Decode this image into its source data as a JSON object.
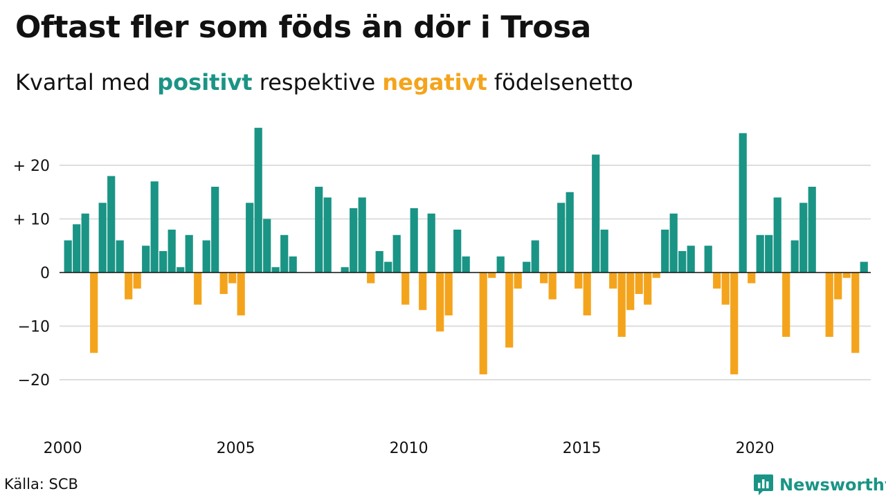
{
  "header": {
    "title": "Oftast fler som föds än dör i Trosa",
    "subtitle_pre": "Kvartal med ",
    "subtitle_pos": "positivt",
    "subtitle_mid": " respektive ",
    "subtitle_neg": "negativt",
    "subtitle_post": " födelsenetto"
  },
  "footer": {
    "source": "Källa: SCB",
    "brand": "Newsworthy"
  },
  "colors": {
    "positive": "#1a9485",
    "negative": "#f4a41c",
    "grid": "#dddddd",
    "text": "#111111"
  },
  "chart_data": {
    "type": "bar",
    "title": "Oftast fler som föds än dör i Trosa",
    "subtitle": "Kvartal med positivt respektive negativt födelsenetto",
    "start_year": 2000,
    "start_quarter": 1,
    "xlabel": "",
    "ylabel": "",
    "ylim": [
      -29,
      29
    ],
    "y_ticks": [
      20,
      10,
      0,
      -10,
      -20
    ],
    "y_tick_labels": [
      "+ 20",
      "+ 10",
      "0",
      "−10",
      "−20"
    ],
    "x_tick_labels": [
      "2000",
      "2005",
      "2010",
      "2015",
      "2020"
    ],
    "grid": true,
    "values": [
      6,
      9,
      11,
      -15,
      13,
      18,
      6,
      -5,
      -3,
      5,
      17,
      4,
      8,
      1,
      7,
      -6,
      6,
      16,
      -4,
      -2,
      -8,
      13,
      27,
      10,
      1,
      7,
      3,
      0,
      0,
      16,
      14,
      0,
      1,
      12,
      14,
      -2,
      4,
      2,
      7,
      -6,
      12,
      -7,
      11,
      -11,
      -8,
      8,
      3,
      0,
      -19,
      -1,
      3,
      -14,
      -3,
      2,
      6,
      -2,
      -5,
      13,
      15,
      -3,
      -8,
      22,
      8,
      -3,
      -12,
      -7,
      -4,
      -6,
      -1,
      8,
      11,
      4,
      5,
      0,
      5,
      -3,
      -6,
      -19,
      26,
      -2,
      7,
      7,
      14,
      -12,
      6,
      13,
      16,
      0,
      -12,
      -5,
      -1,
      -15,
      2
    ]
  }
}
